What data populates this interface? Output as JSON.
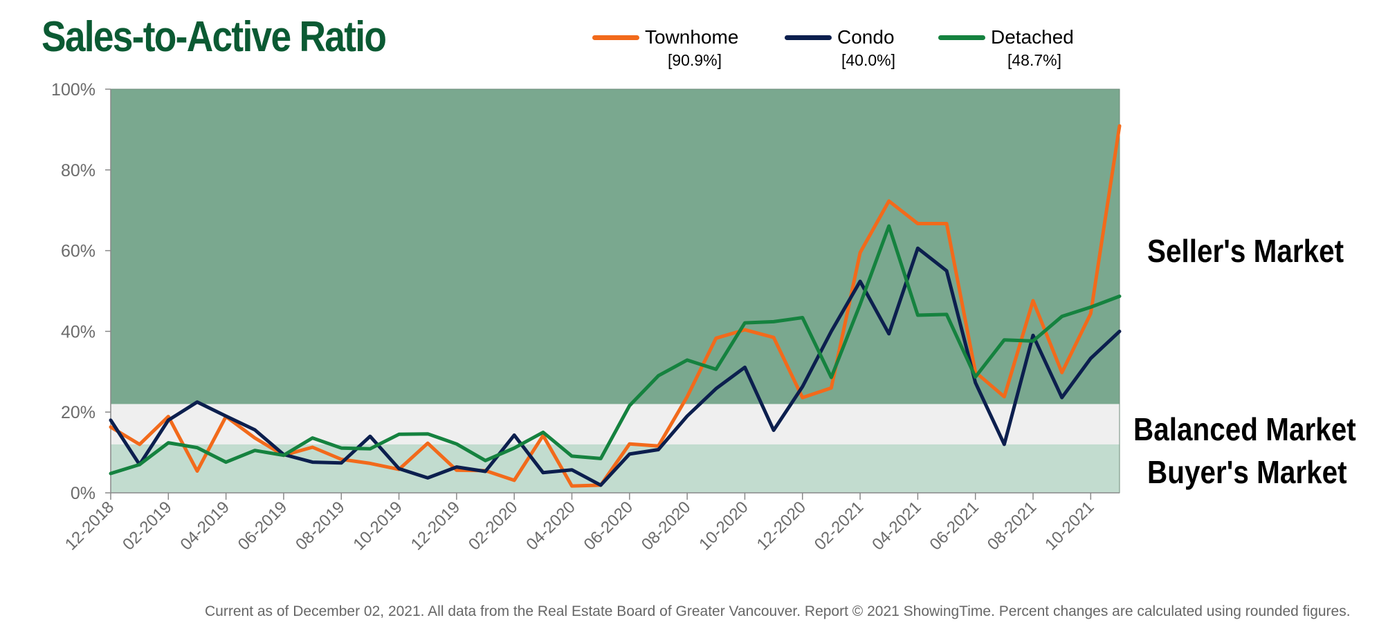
{
  "title": "Sales-to-Active Ratio",
  "legend": [
    {
      "name": "Townhome",
      "value": "[90.9%]",
      "color": "#f26a1b"
    },
    {
      "name": "Condo",
      "value": "[40.0%]",
      "color": "#0c1f4e"
    },
    {
      "name": "Detached",
      "value": "[48.7%]",
      "color": "#15823f"
    }
  ],
  "zones": {
    "sellers": "Seller's Market",
    "balanced": "Balanced Market",
    "buyers": "Buyer's Market",
    "colors": {
      "sellers": "#7aa88f",
      "balanced": "#efefef",
      "buyers": "#c2dccf"
    },
    "balanced_range": [
      12,
      22
    ]
  },
  "footnote": "Current as of December 02, 2021. All data from the Real Estate Board of Greater Vancouver. Report © 2021 ShowingTime. Percent changes are calculated using rounded figures.",
  "chart_data": {
    "type": "line",
    "title": "Sales-to-Active Ratio",
    "x": [
      "12-2018",
      "01-2019",
      "02-2019",
      "03-2019",
      "04-2019",
      "05-2019",
      "06-2019",
      "07-2019",
      "08-2019",
      "09-2019",
      "10-2019",
      "11-2019",
      "12-2019",
      "01-2020",
      "02-2020",
      "03-2020",
      "04-2020",
      "05-2020",
      "06-2020",
      "07-2020",
      "08-2020",
      "09-2020",
      "10-2020",
      "11-2020",
      "12-2020",
      "01-2021",
      "02-2021",
      "03-2021",
      "04-2021",
      "05-2021",
      "06-2021",
      "07-2021",
      "08-2021",
      "09-2021",
      "10-2021",
      "11-2021"
    ],
    "x_tick_labels": [
      "12-2018",
      "02-2019",
      "04-2019",
      "06-2019",
      "08-2019",
      "10-2019",
      "12-2019",
      "02-2020",
      "04-2020",
      "06-2020",
      "08-2020",
      "10-2020",
      "12-2020",
      "02-2021",
      "04-2021",
      "06-2021",
      "08-2021",
      "10-2021"
    ],
    "y_tick_labels": [
      "0%",
      "20%",
      "40%",
      "60%",
      "80%",
      "100%"
    ],
    "ylim": [
      0,
      100
    ],
    "grid": false,
    "legend_position": "top",
    "series": [
      {
        "name": "Townhome",
        "color": "#f26a1b",
        "values": [
          16.3,
          12.0,
          18.9,
          5.4,
          18.9,
          13.6,
          9.3,
          11.3,
          8.3,
          7.3,
          5.8,
          12.3,
          5.6,
          5.5,
          3.1,
          14.2,
          1.7,
          1.9,
          12.1,
          11.6,
          23.8,
          38.3,
          40.4,
          38.5,
          23.6,
          26.0,
          59.5,
          72.3,
          66.7,
          66.7,
          29.9,
          23.8,
          47.6,
          29.8,
          44.4,
          90.9
        ]
      },
      {
        "name": "Condo",
        "color": "#0c1f4e",
        "values": [
          18.0,
          7.0,
          18.0,
          22.5,
          19.0,
          15.6,
          9.5,
          7.6,
          7.4,
          14.0,
          6.0,
          3.7,
          6.4,
          5.3,
          14.3,
          5.0,
          5.7,
          1.9,
          9.6,
          10.7,
          19.0,
          25.8,
          31.1,
          15.5,
          26.3,
          40.0,
          52.4,
          39.4,
          60.6,
          55.0,
          27.3,
          12.0,
          39.0,
          23.6,
          33.3,
          40.0
        ]
      },
      {
        "name": "Detached",
        "color": "#15823f",
        "values": [
          4.8,
          7.0,
          12.4,
          11.2,
          7.6,
          10.5,
          9.3,
          13.6,
          11.1,
          10.9,
          14.5,
          14.6,
          12.1,
          8.0,
          11.1,
          15.0,
          9.1,
          8.5,
          21.6,
          29.0,
          32.9,
          30.6,
          42.1,
          42.4,
          43.4,
          28.6,
          46.7,
          66.1,
          44.0,
          44.2,
          28.7,
          37.9,
          37.6,
          43.7,
          46.0,
          48.7
        ]
      }
    ]
  }
}
